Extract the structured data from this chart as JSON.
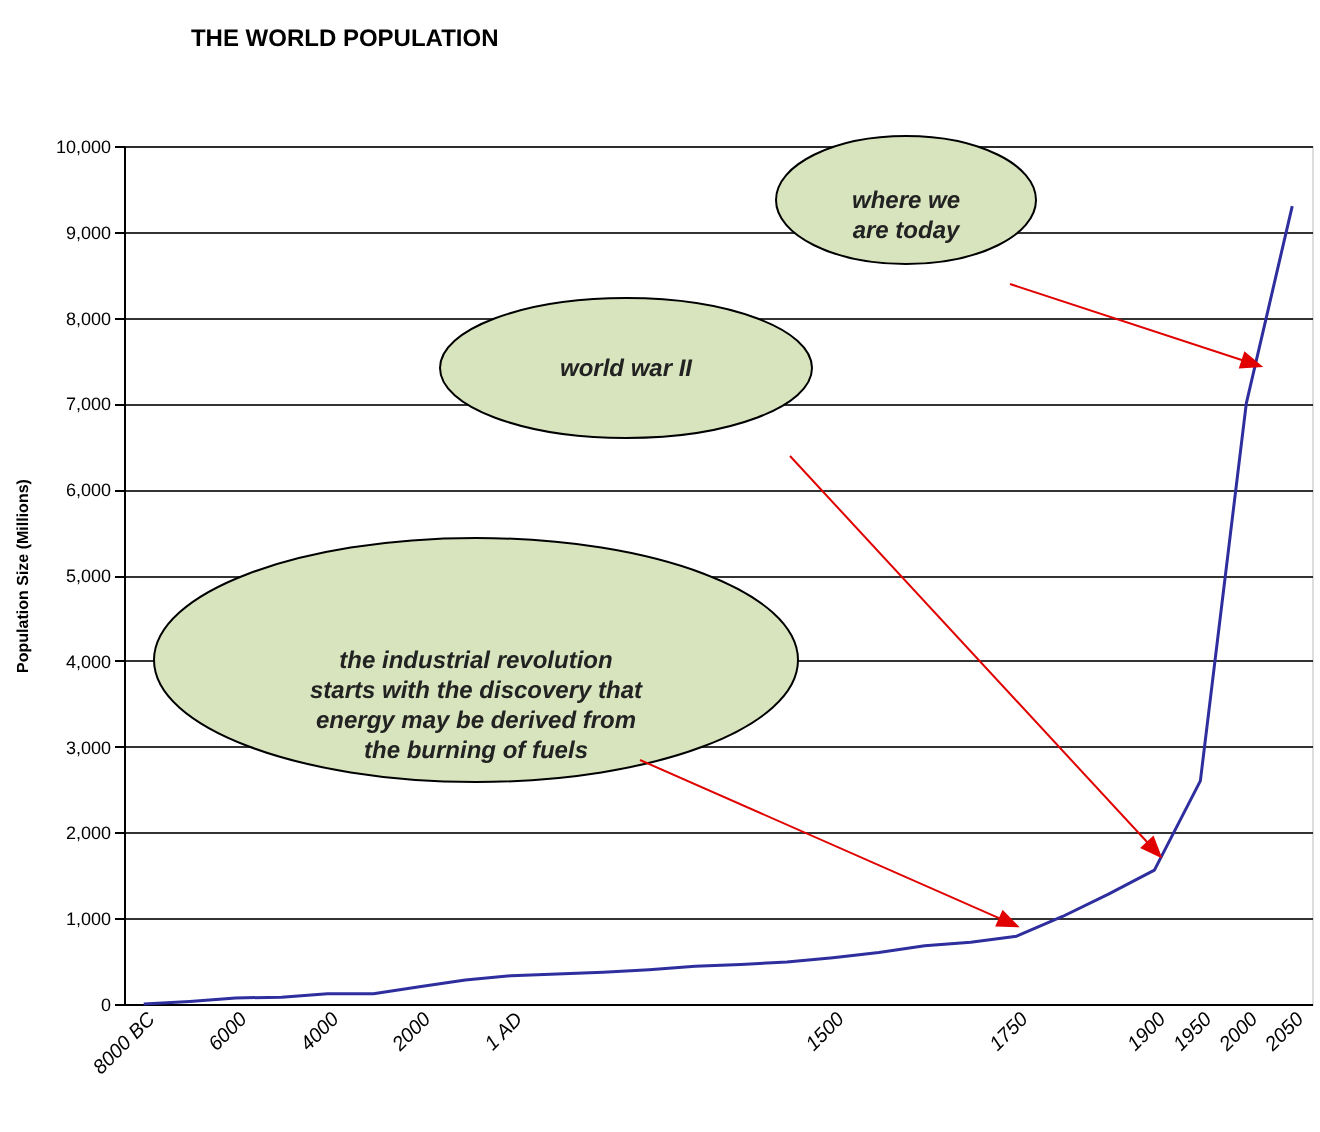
{
  "chart_data": {
    "type": "line",
    "title": "THE   WORLD  POPULATION",
    "ylabel": "Population Size (Millions)",
    "categories": [
      "8000 BC",
      null,
      "6000",
      null,
      "4000",
      null,
      "2000",
      null,
      "1 AD",
      null,
      null,
      null,
      null,
      null,
      null,
      "1500",
      null,
      null,
      null,
      "1750",
      null,
      null,
      "1900",
      "1950",
      "2000",
      "2050"
    ],
    "series": [
      {
        "color": "#2e2e9e",
        "values": [
          0,
          30,
          70,
          80,
          120,
          120,
          200,
          280,
          330,
          350,
          370,
          400,
          440,
          460,
          490,
          540,
          600,
          680,
          720,
          790,
          1020,
          1280,
          1560,
          2600,
          7000,
          9300
        ]
      }
    ],
    "ylim": [
      0,
      10000
    ],
    "yticks": [
      0,
      {
        "value": 1000,
        "label": "1,000"
      },
      {
        "value": 2000,
        "label": "2,000"
      },
      {
        "value": 3000,
        "label": "3,000"
      },
      {
        "value": 4000,
        "label": "4,000"
      },
      {
        "value": 5000,
        "label": "5,000"
      },
      {
        "value": 6000,
        "label": "6,000"
      },
      {
        "value": 7000,
        "label": "7,000"
      },
      {
        "value": 8000,
        "label": "8,000"
      },
      {
        "value": 9000,
        "label": "9,000"
      },
      {
        "value": 10000,
        "label": "10,000"
      }
    ],
    "grid": "y",
    "marker": "none",
    "line_style": "solid",
    "annotations": [
      "where we\nare today",
      "world war II",
      {
        "text": "the industrial  revolution\nstarts  with the discovery that\nenergy may be derived  from\nthe  burning  of  fuels",
        "x": "1750",
        "y": 910
      }
    ]
  }
}
